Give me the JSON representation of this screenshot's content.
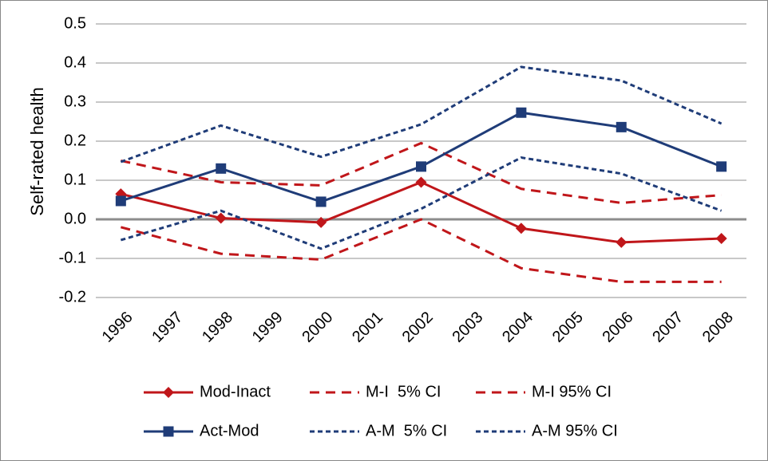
{
  "chart_data": {
    "type": "line",
    "y_label": "Self-rated health",
    "x": [
      1996,
      1998,
      2000,
      2002,
      2004,
      2006,
      2008
    ],
    "xlim": [
      1995.5,
      2008.5
    ],
    "xticks": [
      1996,
      1997,
      1998,
      1999,
      2000,
      2001,
      2002,
      2003,
      2004,
      2005,
      2006,
      2007,
      2008
    ],
    "ylim": [
      -0.2,
      0.5
    ],
    "yticks": [
      {
        "value": 0.5,
        "label": "0.5"
      },
      0.4,
      0.3,
      0.2,
      0.1,
      {
        "value": 0,
        "label": "0.0"
      },
      -0.1,
      -0.2
    ],
    "grid": true,
    "legend": "bottom",
    "series": [
      {
        "name": "Mod-Inact",
        "color": "#c0161a",
        "line_style": "solid",
        "marker": "diamond",
        "values": [
          0.065,
          0.003,
          -0.008,
          0.095,
          -0.023,
          -0.059,
          -0.049
        ]
      },
      {
        "name": "M-I  5% CI",
        "color": "#c0161a",
        "line_style": "long-dash",
        "marker": null,
        "values": [
          -0.02,
          -0.088,
          -0.103,
          0.0,
          -0.125,
          -0.16,
          -0.16
        ]
      },
      {
        "name": "M-I 95% CI",
        "color": "#c0161a",
        "line_style": "long-dash",
        "marker": null,
        "values": [
          0.15,
          0.095,
          0.087,
          0.195,
          0.078,
          0.042,
          0.062
        ]
      },
      {
        "name": "Act-Mod",
        "color": "#1f3c78",
        "line_style": "solid",
        "marker": "square",
        "values": [
          0.047,
          0.13,
          0.045,
          0.135,
          0.273,
          0.236,
          0.135
        ]
      },
      {
        "name": "A-M  5% CI",
        "color": "#1f3c78",
        "line_style": "short-dash",
        "marker": null,
        "values": [
          -0.053,
          0.022,
          -0.075,
          0.027,
          0.158,
          0.117,
          0.022
        ]
      },
      {
        "name": "A-M 95% CI",
        "color": "#1f3c78",
        "line_style": "short-dash",
        "marker": null,
        "values": [
          0.147,
          0.24,
          0.16,
          0.243,
          0.39,
          0.355,
          0.245
        ]
      }
    ]
  }
}
